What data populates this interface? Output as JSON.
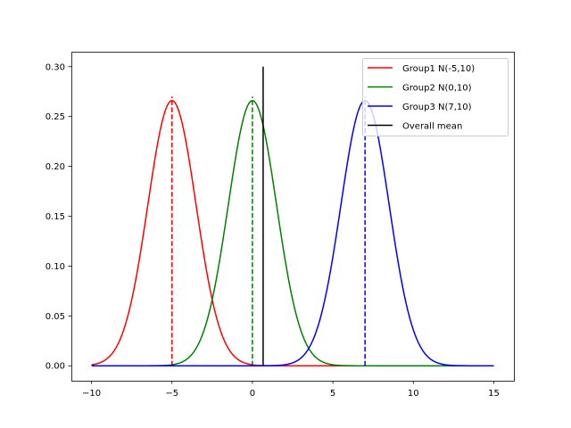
{
  "chart_data": {
    "type": "line",
    "title": "",
    "xlabel": "",
    "ylabel": "",
    "xlim": [
      -11.25,
      16.25
    ],
    "ylim": [
      -0.015,
      0.315
    ],
    "x_range": [
      -10,
      15
    ],
    "xticks": [
      -10,
      -5,
      0,
      5,
      10,
      15
    ],
    "xtick_labels": [
      "−10",
      "−5",
      "0",
      "5",
      "10",
      "15"
    ],
    "yticks": [
      0.0,
      0.05,
      0.1,
      0.15,
      0.2,
      0.25,
      0.3
    ],
    "ytick_labels": [
      "0.00",
      "0.05",
      "0.10",
      "0.15",
      "0.20",
      "0.25",
      "0.30"
    ],
    "grid": false,
    "legend_position": "top-right",
    "series": [
      {
        "name": "Group1 N(-5,10)",
        "kind": "normal-pdf",
        "mean": -5,
        "sd": 1.5,
        "color": "#ff0000",
        "mean_marker_top": 0.27
      },
      {
        "name": "Group2 N(0,10)",
        "kind": "normal-pdf",
        "mean": 0,
        "sd": 1.5,
        "color": "#008000",
        "mean_marker_top": 0.27
      },
      {
        "name": "Group3 N(7,10)",
        "kind": "normal-pdf",
        "mean": 7,
        "sd": 1.5,
        "color": "#0000ff",
        "mean_marker_top": 0.27
      },
      {
        "name": "Overall mean",
        "kind": "vline",
        "x": 0.667,
        "y": [
          0,
          0.3
        ],
        "color": "#000000"
      }
    ]
  }
}
